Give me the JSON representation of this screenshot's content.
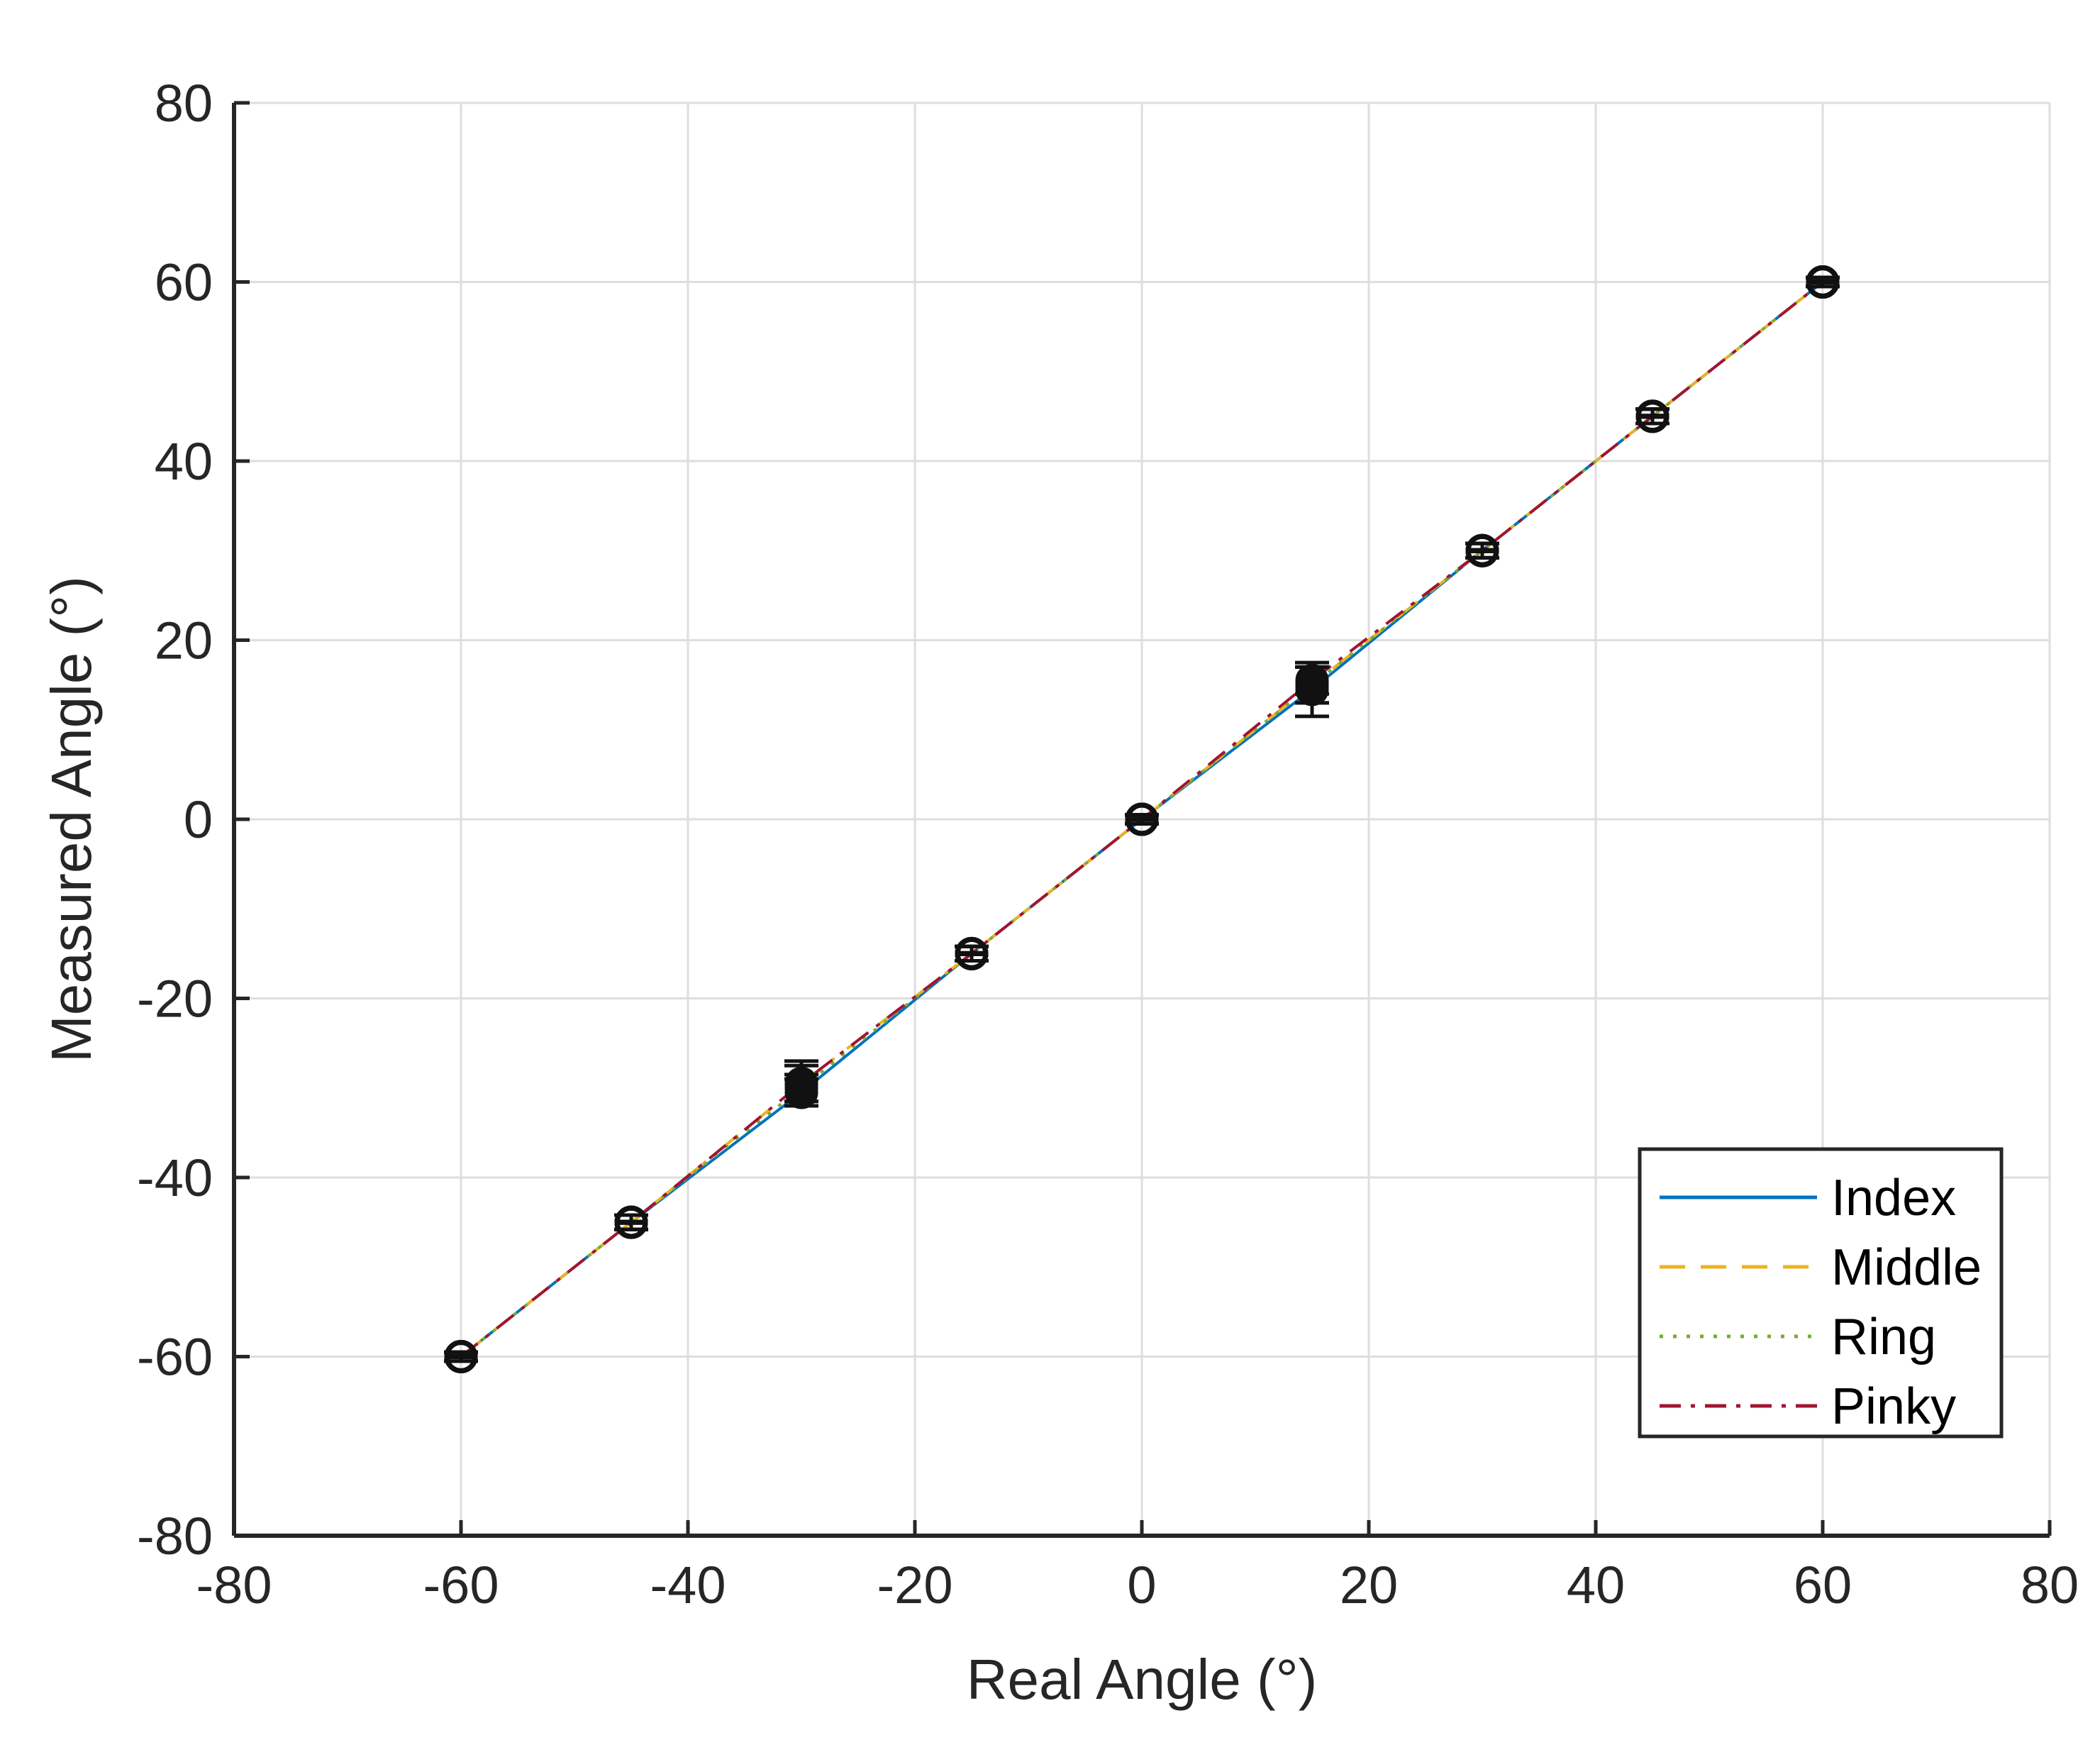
{
  "chart_data": {
    "type": "line",
    "title": "",
    "xlabel": "Real Angle (°)",
    "ylabel": "Measured Angle (°)",
    "xlim": [
      -80,
      80
    ],
    "ylim": [
      -80,
      80
    ],
    "xticks": [
      -80,
      -60,
      -40,
      -20,
      0,
      20,
      40,
      60,
      80
    ],
    "yticks": [
      -80,
      -60,
      -40,
      -20,
      0,
      20,
      40,
      60,
      80
    ],
    "xtick_labels": [
      "-80",
      "-60",
      "-40",
      "-20",
      "0",
      "20",
      "40",
      "60",
      "80"
    ],
    "ytick_labels": [
      "-80",
      "-60",
      "-40",
      "-20",
      "0",
      "20",
      "40",
      "60",
      "80"
    ],
    "grid": true,
    "legend_position": "bottom-right",
    "x": [
      -60,
      -45,
      -30,
      -15,
      0,
      15,
      30,
      45,
      60
    ],
    "series": [
      {
        "name": "Index",
        "color": "#0072BD",
        "style": "solid",
        "values": [
          -60,
          -45,
          -30.5,
          -15,
          0,
          14.5,
          30,
          45,
          60
        ],
        "error": [
          0.5,
          0.8,
          1.5,
          0.8,
          0.5,
          3.0,
          0.8,
          0.8,
          0.5
        ]
      },
      {
        "name": "Middle",
        "color": "#EDB120",
        "style": "dashed",
        "values": [
          -60,
          -45,
          -29.5,
          -15,
          0,
          15,
          30,
          45,
          60
        ],
        "error": [
          0.5,
          0.8,
          2.5,
          0.8,
          0.5,
          2.0,
          0.8,
          0.8,
          0.5
        ]
      },
      {
        "name": "Ring",
        "color": "#77AC30",
        "style": "dotted",
        "values": [
          -60,
          -45,
          -30,
          -15,
          0,
          15,
          30,
          45,
          60
        ],
        "error": [
          0.5,
          0.8,
          1.5,
          0.8,
          0.5,
          2.0,
          0.8,
          0.8,
          0.5
        ]
      },
      {
        "name": "Pinky",
        "color": "#A2142F",
        "style": "dashdot",
        "values": [
          -60,
          -45,
          -29.5,
          -15,
          0,
          15.5,
          30,
          45,
          60
        ],
        "error": [
          0.5,
          0.8,
          2.0,
          0.8,
          0.5,
          1.5,
          0.8,
          0.8,
          0.5
        ]
      }
    ]
  }
}
